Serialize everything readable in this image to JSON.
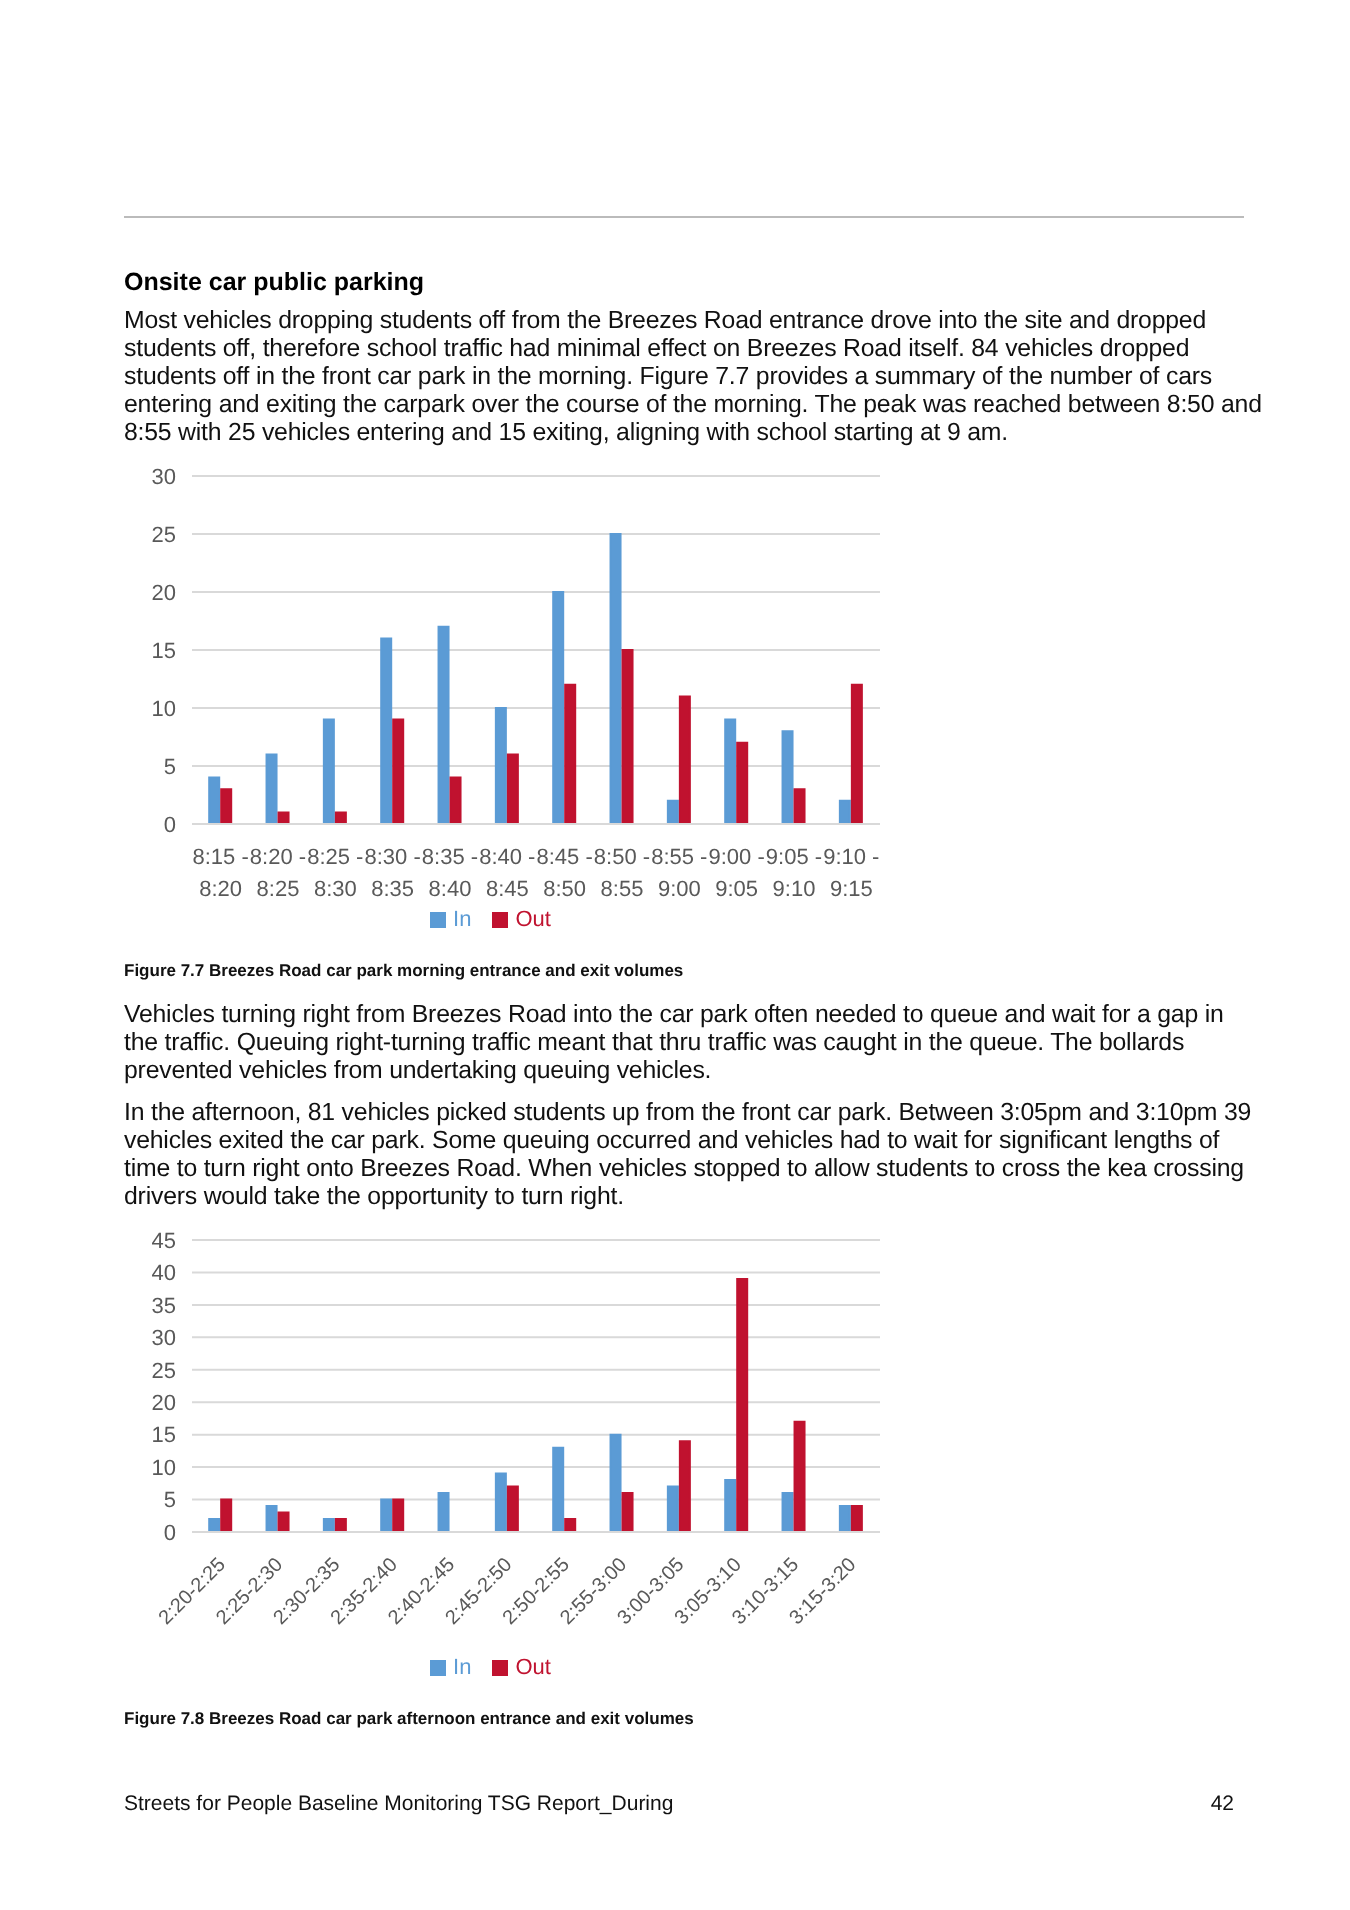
{
  "chart_data": [
    {
      "type": "bar",
      "title": "Onsite car public parking",
      "subtitle": "Most vehicles dropping students off from the Breezes Road entrance drove into the site and dropped students off, therefore school traffic had minimal effect on Breezes Road itself. 84 vehicles dropped students off in the front car park in the morning. Figure 7.7 provides a summary of the number of cars entering and exiting the carpark over the course of the morning. The peak was reached between 8:50 and 8:55 with 25 vehicles entering and 15 exiting, aligning with school starting at 9 am.",
      "categories": [
        "8:15 - 8:20",
        "8:20 - 8:25",
        "8:25 - 8:30",
        "8:30 - 8:35",
        "8:35 - 8:40",
        "8:40 - 8:45",
        "8:45 - 8:50",
        "8:50 - 8:55",
        "8:55 - 9:00",
        "9:00 - 9:05",
        "9:05 - 9:10",
        "9:10 - 9:15"
      ],
      "series": [
        {
          "name": "In",
          "color": "#5b9bd5",
          "values": [
            4,
            6,
            9,
            16,
            17,
            10,
            20,
            25,
            2,
            9,
            8,
            2
          ]
        },
        {
          "name": "Out",
          "color": "#c0122f",
          "values": [
            3,
            1,
            1,
            9,
            4,
            6,
            12,
            15,
            11,
            7,
            3,
            12
          ]
        }
      ],
      "ylim": [
        0,
        30
      ],
      "yticks": [
        0,
        5,
        10,
        15,
        20,
        25,
        30
      ],
      "grid": "y",
      "legend": "bottom",
      "annotations": [
        "Figure 7.7 Breezes Road car park morning entrance and exit volumes",
        "Vehicles turning right from Breezes Road into the car park often needed to queue and wait for a gap in the traffic. Queuing right-turning traffic meant that thru traffic was caught in the queue. The bollards prevented vehicles from undertaking queuing vehicles.",
        "In the afternoon, 81 vehicles picked students up from the front car park. Between 3:05pm and 3:10pm 39 vehicles exited the car park. Some queuing occurred and vehicles had to wait for significant lengths of time to turn right onto Breezes Road. When vehicles stopped to allow students to cross the kea crossing drivers would take the opportunity to turn right."
      ]
    },
    {
      "type": "bar",
      "categories": [
        "2:20-2:25",
        "2:25-2:30",
        "2:30-2:35",
        "2:35-2:40",
        "2:40-2:45",
        "2:45-2:50",
        "2:50-2:55",
        "2:55-3:00",
        "3:00-3:05",
        "3:05-3:10",
        "3:10-3:15",
        "3:15-3:20"
      ],
      "series": [
        {
          "name": "In",
          "color": "#5b9bd5",
          "values": [
            2,
            4,
            2,
            5,
            6,
            9,
            13,
            15,
            7,
            8,
            6,
            4
          ]
        },
        {
          "name": "Out",
          "color": "#c0122f",
          "values": [
            5,
            3,
            2,
            5,
            0,
            7,
            2,
            6,
            14,
            39,
            17,
            4
          ]
        }
      ],
      "ylim": [
        0,
        45
      ],
      "yticks": [
        0,
        5,
        10,
        15,
        20,
        25,
        30,
        35,
        40,
        45
      ],
      "grid": "y",
      "legend": "bottom",
      "annotations": [
        "Figure 7.8 Breezes Road car park afternoon entrance and exit volumes",
        "Streets for People Baseline Monitoring TSG Report_During",
        "42"
      ]
    }
  ]
}
